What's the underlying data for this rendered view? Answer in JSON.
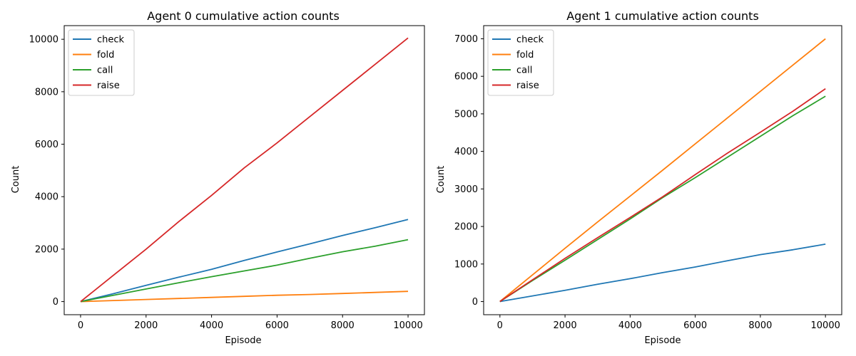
{
  "figure": {
    "background": "#ffffff"
  },
  "series_colors": {
    "check": "#1f77b4",
    "fold": "#ff7f0e",
    "call": "#2ca02c",
    "raise": "#d62728"
  },
  "chart_data": [
    {
      "type": "line",
      "title": "Agent 0 cumulative action counts",
      "xlabel": "Episode",
      "ylabel": "Count",
      "xlim": [
        -500,
        10500
      ],
      "ylim": [
        -500,
        10520
      ],
      "xticks": [
        0,
        2000,
        4000,
        6000,
        8000,
        10000
      ],
      "yticks": [
        0,
        2000,
        4000,
        6000,
        8000,
        10000
      ],
      "grid": false,
      "legend": "upper-left",
      "x": [
        0,
        1000,
        2000,
        3000,
        4000,
        5000,
        6000,
        7000,
        8000,
        9000,
        10000
      ],
      "series": [
        {
          "name": "check",
          "values": [
            0,
            300,
            620,
            930,
            1230,
            1570,
            1890,
            2200,
            2520,
            2820,
            3130
          ]
        },
        {
          "name": "fold",
          "values": [
            0,
            40,
            80,
            120,
            160,
            200,
            240,
            270,
            310,
            350,
            390
          ]
        },
        {
          "name": "call",
          "values": [
            0,
            240,
            480,
            720,
            950,
            1170,
            1390,
            1650,
            1900,
            2110,
            2360
          ]
        },
        {
          "name": "raise",
          "values": [
            0,
            1000,
            2000,
            3050,
            4050,
            5100,
            6050,
            7050,
            8050,
            9050,
            10050
          ]
        }
      ]
    },
    {
      "type": "line",
      "title": "Agent 1 cumulative action counts",
      "xlabel": "Episode",
      "ylabel": "Count",
      "xlim": [
        -500,
        10500
      ],
      "ylim": [
        -350,
        7350
      ],
      "xticks": [
        0,
        2000,
        4000,
        6000,
        8000,
        10000
      ],
      "yticks": [
        0,
        1000,
        2000,
        3000,
        4000,
        5000,
        6000,
        7000
      ],
      "grid": false,
      "legend": "upper-left",
      "x": [
        0,
        1000,
        2000,
        3000,
        4000,
        5000,
        6000,
        7000,
        8000,
        9000,
        10000
      ],
      "series": [
        {
          "name": "check",
          "values": [
            0,
            150,
            300,
            460,
            610,
            770,
            920,
            1090,
            1250,
            1380,
            1530
          ]
        },
        {
          "name": "fold",
          "values": [
            0,
            710,
            1420,
            2120,
            2810,
            3500,
            4200,
            4900,
            5600,
            6300,
            7000
          ]
        },
        {
          "name": "call",
          "values": [
            0,
            560,
            1100,
            1650,
            2200,
            2770,
            3300,
            3850,
            4400,
            4950,
            5470
          ]
        },
        {
          "name": "raise",
          "values": [
            0,
            580,
            1150,
            1700,
            2240,
            2790,
            3380,
            3960,
            4510,
            5070,
            5670
          ]
        }
      ]
    }
  ]
}
